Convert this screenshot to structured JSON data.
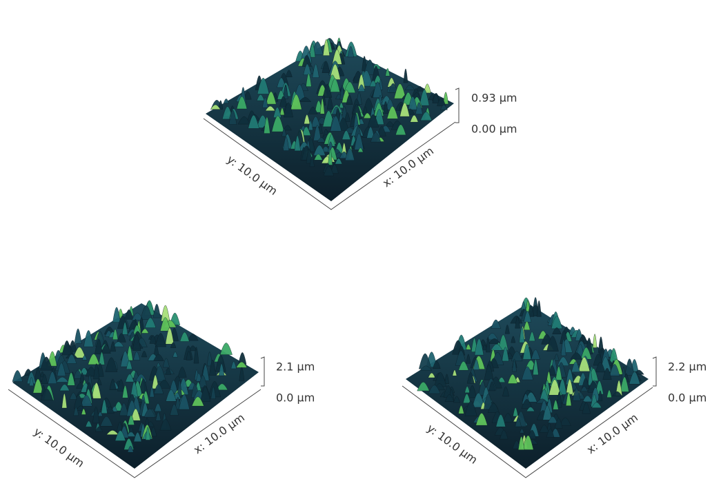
{
  "panels": [
    {
      "x_label": "x: 10.0 µm",
      "y_label": "y: 10.0 µm",
      "z_max": "0.93 µm",
      "z_min": "0.00 µm"
    },
    {
      "x_label": "x: 10.0 µm",
      "y_label": "y: 10.0 µm",
      "z_max": "2.1 µm",
      "z_min": "0.0 µm"
    },
    {
      "x_label": "x: 10.0 µm",
      "y_label": "y: 10.0 µm",
      "z_max": "2.2 µm",
      "z_min": "0.0 µm"
    }
  ]
}
